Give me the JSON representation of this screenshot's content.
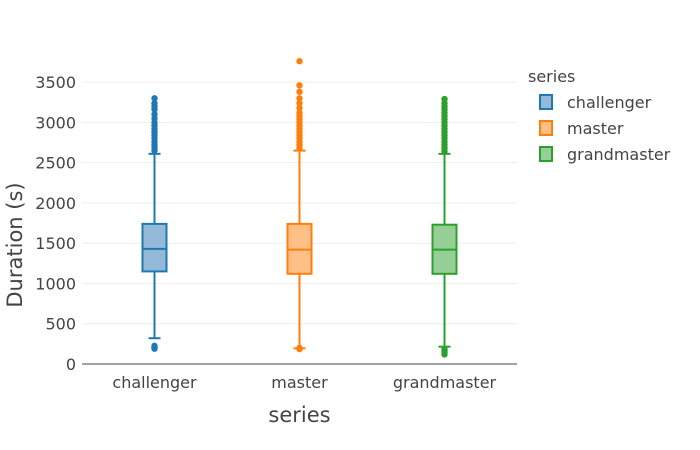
{
  "chart_data": {
    "type": "box",
    "xlabel": "series",
    "ylabel": "Duration (s)",
    "ylim": [
      0,
      3800
    ],
    "yticks": [
      0,
      500,
      1000,
      1500,
      2000,
      2500,
      3000,
      3500
    ],
    "grid": true,
    "legend_title": "series",
    "legend_position": "top-right",
    "categories": [
      "challenger",
      "master",
      "grandmaster"
    ],
    "series": [
      {
        "name": "challenger",
        "color": "#1f77b4",
        "fill": "#94b9d8",
        "min": 320,
        "q1": 1150,
        "median": 1430,
        "q3": 1740,
        "max": 2610,
        "outliers": [
          190,
          210,
          225,
          2650,
          2690,
          2720,
          2760,
          2800,
          2840,
          2880,
          2920,
          2960,
          3000,
          3050,
          3100,
          3160,
          3200,
          3240,
          3300
        ]
      },
      {
        "name": "master",
        "color": "#ff7f0e",
        "fill": "#ffbf86",
        "min": 195,
        "q1": 1120,
        "median": 1420,
        "q3": 1740,
        "max": 2650,
        "outliers": [
          185,
          200,
          2680,
          2720,
          2760,
          2800,
          2840,
          2880,
          2920,
          2960,
          3000,
          3040,
          3080,
          3120,
          3180,
          3240,
          3300,
          3380,
          3460,
          3760
        ]
      },
      {
        "name": "grandmaster",
        "color": "#2ca02c",
        "fill": "#95cf95",
        "min": 215,
        "q1": 1120,
        "median": 1420,
        "q3": 1730,
        "max": 2610,
        "outliers": [
          120,
          145,
          165,
          185,
          2640,
          2680,
          2720,
          2760,
          2800,
          2840,
          2880,
          2920,
          2960,
          3000,
          3040,
          3080,
          3120,
          3160,
          3200,
          3240,
          3290
        ]
      }
    ]
  }
}
